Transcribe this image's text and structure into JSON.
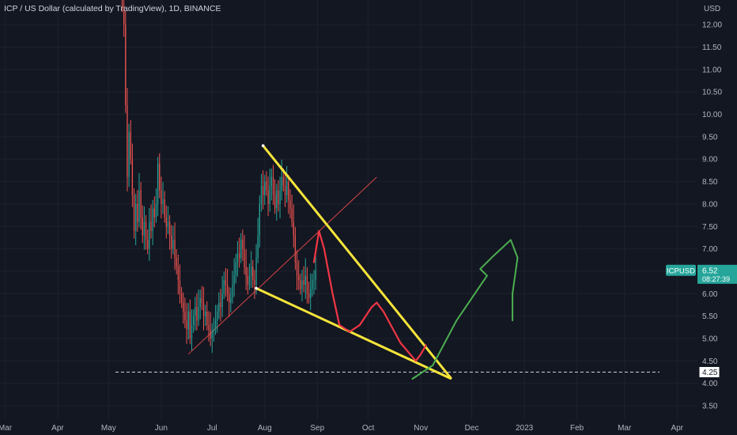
{
  "chart_data": {
    "type": "candlestick",
    "title": "ICP / US Dollar (calculated by TradingView), 1D, BINANCE",
    "currency": "USD",
    "y_ticks": [
      "12.00",
      "11.50",
      "11.00",
      "10.50",
      "10.00",
      "9.50",
      "9.00",
      "8.50",
      "8.00",
      "7.50",
      "7.00",
      "6.50",
      "6.00",
      "5.50",
      "5.00",
      "4.50",
      "4.00",
      "3.50"
    ],
    "y_tick_values": [
      12.0,
      11.5,
      11.0,
      10.5,
      10.0,
      9.5,
      9.0,
      8.5,
      8.0,
      7.5,
      7.0,
      6.5,
      6.0,
      5.5,
      5.0,
      4.5,
      4.0,
      3.5
    ],
    "ylim": [
      3.2,
      12.55
    ],
    "x_ticks": [
      "Mar",
      "Apr",
      "May",
      "Jun",
      "Jul",
      "Aug",
      "Sep",
      "Oct",
      "Nov",
      "Dec",
      "2023",
      "Feb",
      "Mar",
      "Apr"
    ],
    "x_tick_dates": [
      "2022-03-01",
      "2022-04-01",
      "2022-05-01",
      "2022-06-01",
      "2022-07-01",
      "2022-08-01",
      "2022-09-01",
      "2022-10-01",
      "2022-11-01",
      "2022-12-01",
      "2023-01-01",
      "2023-02-01",
      "2023-03-01",
      "2023-04-01"
    ],
    "xlim": [
      "2022-02-26",
      "2023-04-13"
    ],
    "symbol_badge": {
      "symbol": "ICPUSD",
      "price": "6.52",
      "countdown": "08:27:39",
      "value": 6.52
    },
    "level_marker": {
      "label": "4.25",
      "value": 4.25
    },
    "colors": {
      "up": "#26a69a",
      "down": "#ef5350",
      "background": "#131722",
      "trend_yellow": "#f5e53a",
      "drawing_red": "#f23645",
      "drawing_green": "#4caf50",
      "thin_line": "#d64545"
    },
    "closes": [
      [
        "2022-05-09",
        12.4
      ],
      [
        "2022-05-10",
        12.0
      ],
      [
        "2022-05-11",
        10.2
      ],
      [
        "2022-05-12",
        8.6
      ],
      [
        "2022-05-13",
        9.6
      ],
      [
        "2022-05-14",
        9.0
      ],
      [
        "2022-05-15",
        8.2
      ],
      [
        "2022-05-16",
        7.4
      ],
      [
        "2022-05-17",
        8.0
      ],
      [
        "2022-05-18",
        7.6
      ],
      [
        "2022-05-19",
        8.3
      ],
      [
        "2022-05-20",
        7.7
      ],
      [
        "2022-05-21",
        7.3
      ],
      [
        "2022-05-22",
        7.6
      ],
      [
        "2022-05-23",
        7.2
      ],
      [
        "2022-05-24",
        7.0
      ],
      [
        "2022-05-25",
        7.6
      ],
      [
        "2022-05-26",
        7.4
      ],
      [
        "2022-05-27",
        7.9
      ],
      [
        "2022-05-28",
        7.7
      ],
      [
        "2022-05-29",
        8.0
      ],
      [
        "2022-05-30",
        8.9
      ],
      [
        "2022-05-31",
        8.3
      ],
      [
        "2022-06-01",
        8.0
      ],
      [
        "2022-06-02",
        8.1
      ],
      [
        "2022-06-03",
        7.7
      ],
      [
        "2022-06-04",
        7.5
      ],
      [
        "2022-06-05",
        7.6
      ],
      [
        "2022-06-06",
        7.3
      ],
      [
        "2022-06-07",
        7.0
      ],
      [
        "2022-06-08",
        7.2
      ],
      [
        "2022-06-09",
        6.8
      ],
      [
        "2022-06-10",
        6.6
      ],
      [
        "2022-06-11",
        6.3
      ],
      [
        "2022-06-12",
        6.0
      ],
      [
        "2022-06-13",
        5.8
      ],
      [
        "2022-06-14",
        5.6
      ],
      [
        "2022-06-15",
        5.4
      ],
      [
        "2022-06-16",
        5.2
      ],
      [
        "2022-06-17",
        5.6
      ],
      [
        "2022-06-18",
        5.0
      ],
      [
        "2022-06-19",
        5.3
      ],
      [
        "2022-06-20",
        5.5
      ],
      [
        "2022-06-21",
        5.7
      ],
      [
        "2022-06-22",
        5.4
      ],
      [
        "2022-06-23",
        5.7
      ],
      [
        "2022-06-24",
        5.9
      ],
      [
        "2022-06-25",
        5.8
      ],
      [
        "2022-06-26",
        5.5
      ],
      [
        "2022-06-27",
        5.6
      ],
      [
        "2022-06-28",
        5.3
      ],
      [
        "2022-06-29",
        5.2
      ],
      [
        "2022-06-30",
        5.0
      ],
      [
        "2022-07-01",
        5.15
      ],
      [
        "2022-07-02",
        5.2
      ],
      [
        "2022-07-03",
        5.4
      ],
      [
        "2022-07-04",
        5.6
      ],
      [
        "2022-07-05",
        5.8
      ],
      [
        "2022-07-06",
        5.7
      ],
      [
        "2022-07-07",
        6.0
      ],
      [
        "2022-07-08",
        6.3
      ],
      [
        "2022-07-09",
        6.2
      ],
      [
        "2022-07-10",
        6.0
      ],
      [
        "2022-07-11",
        5.8
      ],
      [
        "2022-07-12",
        5.9
      ],
      [
        "2022-07-13",
        6.2
      ],
      [
        "2022-07-14",
        6.4
      ],
      [
        "2022-07-15",
        6.7
      ],
      [
        "2022-07-16",
        6.9
      ],
      [
        "2022-07-17",
        6.8
      ],
      [
        "2022-07-18",
        7.2
      ],
      [
        "2022-07-19",
        7.0
      ],
      [
        "2022-07-20",
        6.6
      ],
      [
        "2022-07-21",
        6.4
      ],
      [
        "2022-07-22",
        6.2
      ],
      [
        "2022-07-23",
        6.4
      ],
      [
        "2022-07-24",
        6.6
      ],
      [
        "2022-07-25",
        6.3
      ],
      [
        "2022-07-26",
        6.2
      ],
      [
        "2022-07-27",
        6.8
      ],
      [
        "2022-07-28",
        7.3
      ],
      [
        "2022-07-29",
        8.0
      ],
      [
        "2022-07-30",
        8.4
      ],
      [
        "2022-07-31",
        8.2
      ],
      [
        "2022-08-01",
        8.5
      ],
      [
        "2022-08-02",
        8.3
      ],
      [
        "2022-08-03",
        8.0
      ],
      [
        "2022-08-04",
        8.4
      ],
      [
        "2022-08-05",
        8.6
      ],
      [
        "2022-08-06",
        8.2
      ],
      [
        "2022-08-07",
        7.9
      ],
      [
        "2022-08-08",
        8.3
      ],
      [
        "2022-08-09",
        8.0
      ],
      [
        "2022-08-10",
        8.3
      ],
      [
        "2022-08-11",
        8.6
      ],
      [
        "2022-08-12",
        8.4
      ],
      [
        "2022-08-13",
        8.2
      ],
      [
        "2022-08-14",
        8.5
      ],
      [
        "2022-08-15",
        8.1
      ],
      [
        "2022-08-16",
        7.9
      ],
      [
        "2022-08-17",
        7.6
      ],
      [
        "2022-08-18",
        7.3
      ],
      [
        "2022-08-19",
        6.7
      ],
      [
        "2022-08-20",
        6.4
      ],
      [
        "2022-08-21",
        6.3
      ],
      [
        "2022-08-22",
        6.1
      ],
      [
        "2022-08-23",
        6.3
      ],
      [
        "2022-08-24",
        6.2
      ],
      [
        "2022-08-25",
        6.4
      ],
      [
        "2022-08-26",
        6.0
      ],
      [
        "2022-08-27",
        5.9
      ],
      [
        "2022-08-28",
        6.1
      ],
      [
        "2022-08-29",
        6.3
      ],
      [
        "2022-08-30",
        6.3
      ],
      [
        "2022-08-31",
        6.52
      ]
    ],
    "drawings": {
      "upper_trendline": [
        [
          "2022-07-31",
          9.3
        ],
        [
          "2022-11-19",
          4.1
        ]
      ],
      "lower_trendline": [
        [
          "2022-07-27",
          6.12
        ],
        [
          "2022-11-19",
          4.1
        ]
      ],
      "thin_ascending_line": [
        [
          "2022-06-17",
          4.65
        ],
        [
          "2022-10-06",
          8.6
        ]
      ],
      "dashed_level_line": [
        [
          "2022-05-05",
          4.25
        ],
        [
          "2023-04-13",
          4.25
        ]
      ],
      "red_path": [
        [
          "2022-08-30",
          6.7
        ],
        [
          "2022-09-02",
          7.4
        ],
        [
          "2022-09-05",
          7.0
        ],
        [
          "2022-09-10",
          6.0
        ],
        [
          "2022-09-14",
          5.3
        ],
        [
          "2022-09-20",
          5.15
        ],
        [
          "2022-09-26",
          5.3
        ],
        [
          "2022-10-03",
          5.7
        ],
        [
          "2022-10-06",
          5.8
        ],
        [
          "2022-10-10",
          5.6
        ],
        [
          "2022-10-20",
          4.9
        ],
        [
          "2022-10-29",
          4.5
        ],
        [
          "2022-11-01",
          4.65
        ],
        [
          "2022-11-04",
          4.85
        ]
      ],
      "green_path": [
        [
          "2022-10-27",
          4.1
        ],
        [
          "2022-11-08",
          4.4
        ],
        [
          "2022-11-22",
          5.4
        ],
        [
          "2022-12-10",
          6.4
        ],
        [
          "2022-12-06",
          6.55
        ],
        [
          "2022-12-14",
          6.85
        ],
        [
          "2022-12-24",
          7.2
        ],
        [
          "2022-12-28",
          6.8
        ],
        [
          "2022-12-25",
          6.0
        ],
        [
          "2022-12-25",
          5.4
        ]
      ]
    }
  }
}
